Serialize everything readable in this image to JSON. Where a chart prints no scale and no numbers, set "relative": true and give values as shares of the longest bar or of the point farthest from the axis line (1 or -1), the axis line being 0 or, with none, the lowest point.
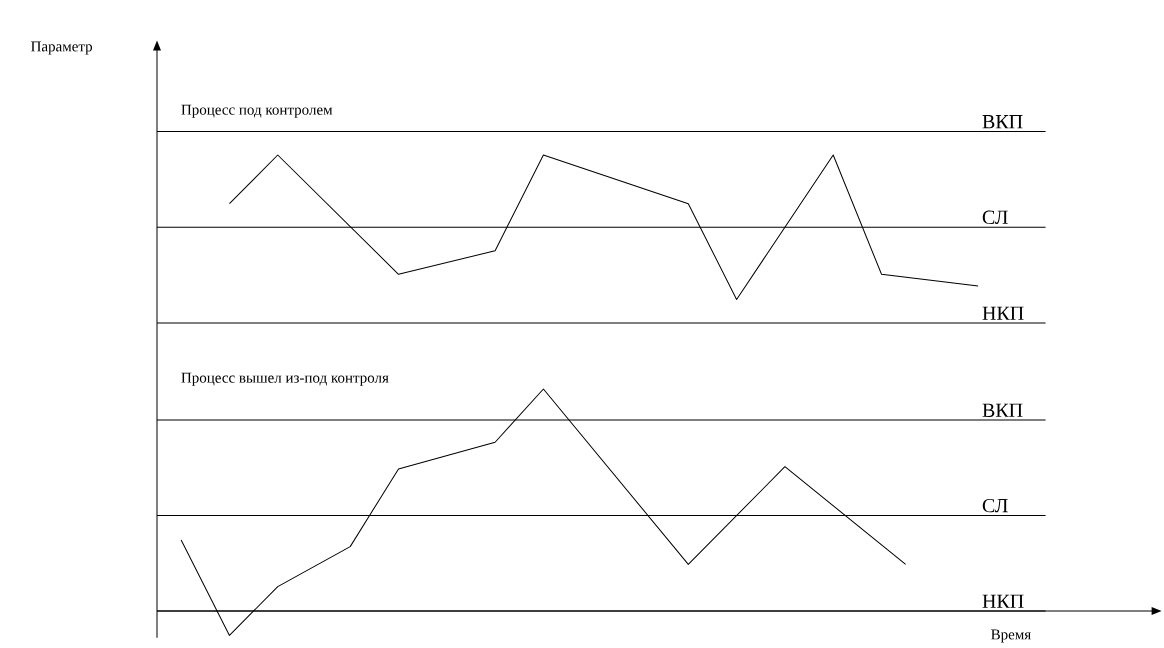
{
  "chart_data": [
    {
      "type": "line",
      "relative": true,
      "title": "Процесс под контролем",
      "ylabel": "Параметр",
      "categories": [
        null,
        null,
        null,
        null,
        null,
        null,
        null,
        null,
        null,
        null,
        null,
        null,
        null,
        null,
        null,
        null,
        null,
        null,
        null,
        null,
        null,
        null,
        null,
        null,
        null,
        null,
        null,
        null,
        null,
        null,
        null,
        null
      ],
      "series": [
        {
          "color": "#000000",
          "values": [
            0.71,
            null,
            1,
            null,
            null,
            null,
            null,
            0.29,
            null,
            null,
            null,
            0.43,
            null,
            1,
            null,
            null,
            null,
            null,
            null,
            0.71,
            null,
            0.14,
            null,
            null,
            null,
            1,
            null,
            0.29,
            null,
            null,
            null,
            0.22
          ]
        }
      ],
      "ref_lines": [
        {
          "axis": "y",
          "value": 1.14,
          "label": "ВКП",
          "color": "#000000"
        },
        {
          "axis": "y",
          "value": 0.57,
          "label": "СЛ",
          "color": "#000000"
        },
        {
          "axis": "y",
          "value": 0,
          "label": "НКП",
          "color": "#000000"
        }
      ]
    },
    {
      "type": "line",
      "relative": true,
      "title": "Процесс вышел из-под контроля",
      "xlabel": "Время",
      "categories": [
        null,
        null,
        null,
        null,
        null,
        null,
        null,
        null,
        null,
        null,
        null,
        null,
        null,
        null,
        null,
        null,
        null,
        null,
        null,
        null,
        null,
        null,
        null,
        null,
        null,
        null,
        null,
        null,
        null,
        null,
        null
      ],
      "series": [
        {
          "color": "#000000",
          "values": [
            0.32,
            null,
            -0.11,
            null,
            0.11,
            null,
            null,
            0.29,
            null,
            0.64,
            null,
            null,
            null,
            0.76,
            null,
            1,
            null,
            null,
            null,
            null,
            null,
            0.21,
            null,
            null,
            null,
            0.65,
            null,
            null,
            null,
            null,
            0.21
          ]
        }
      ],
      "ref_lines": [
        {
          "axis": "y",
          "value": 0.86,
          "label": "ВКП",
          "color": "#000000"
        },
        {
          "axis": "y",
          "value": 0.43,
          "label": "СЛ",
          "color": "#000000"
        },
        {
          "axis": "y",
          "value": 0,
          "label": "НКП",
          "color": "#000000"
        }
      ]
    }
  ]
}
